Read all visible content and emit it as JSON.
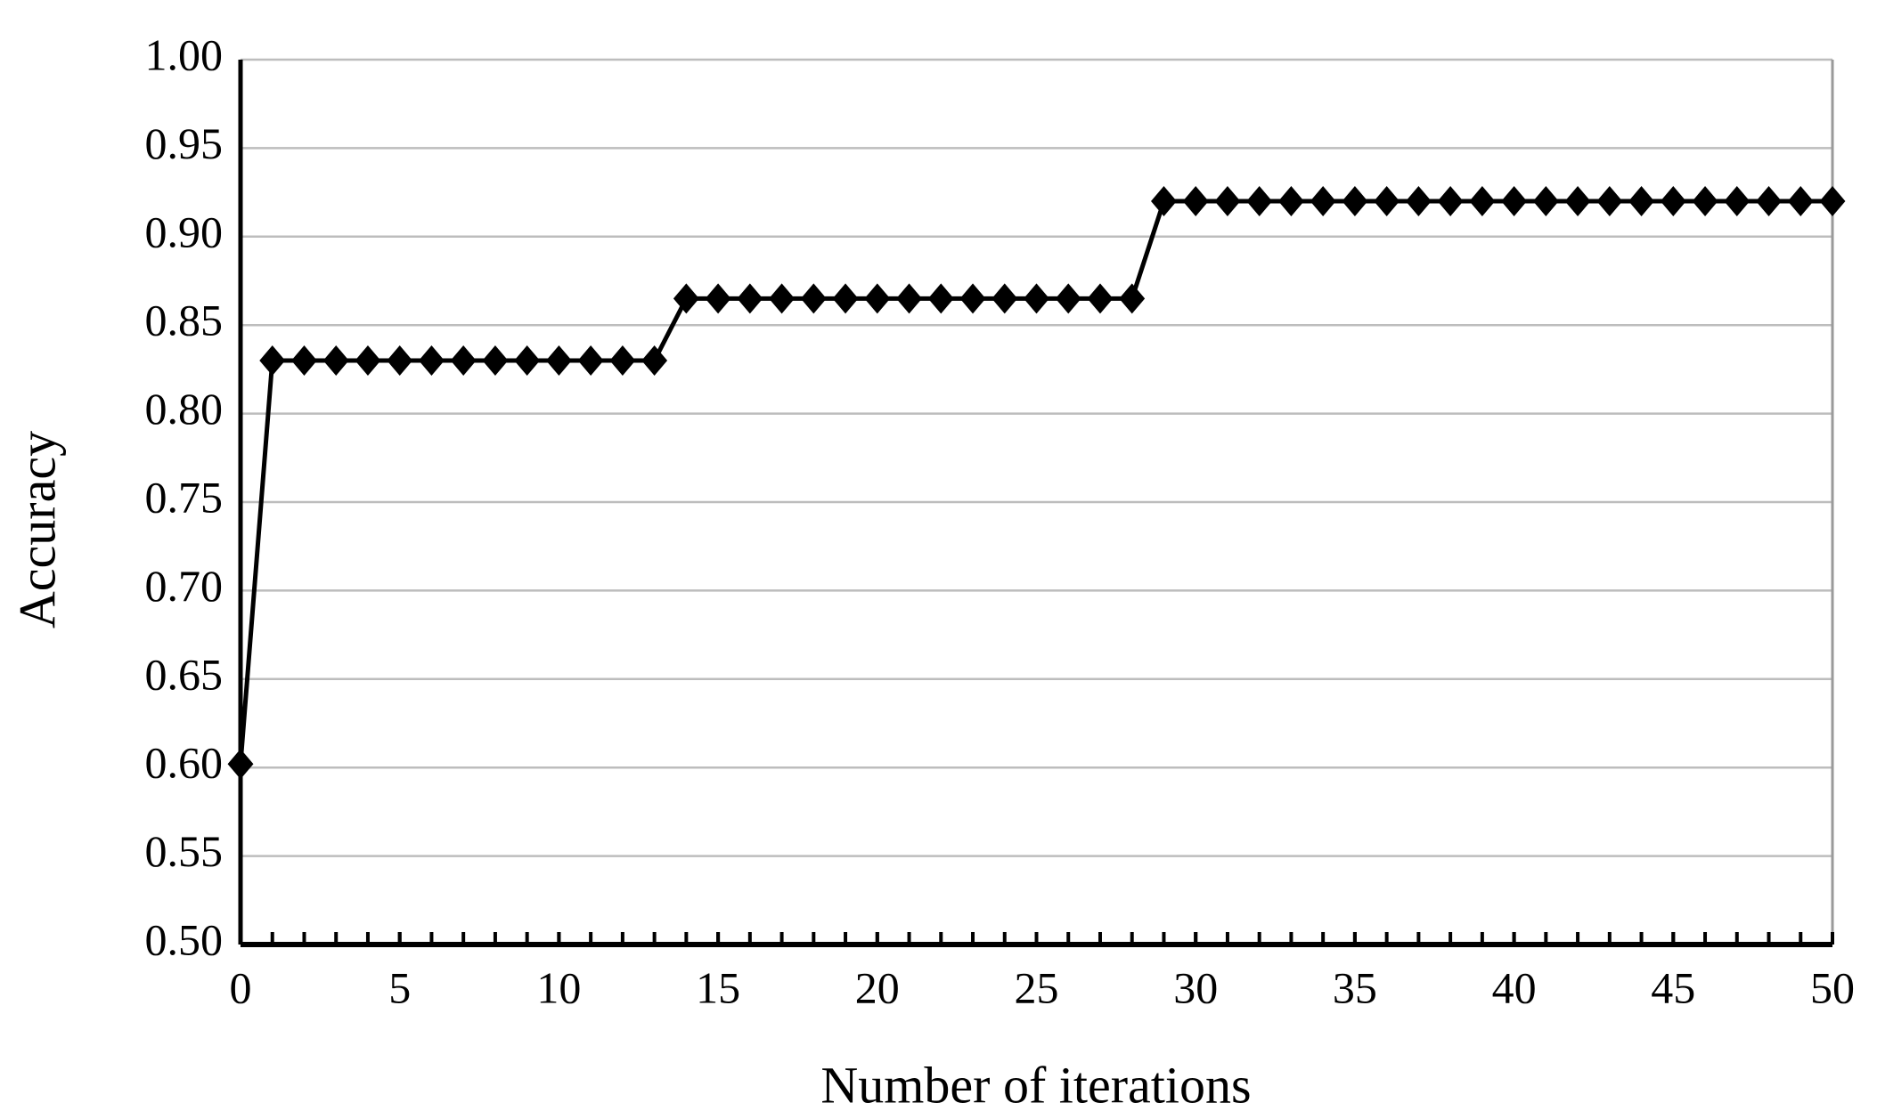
{
  "chart_data": {
    "type": "line",
    "x_label": "Number of iterations",
    "y_label": "Accuracy",
    "x": [
      0,
      1,
      2,
      3,
      4,
      5,
      6,
      7,
      8,
      9,
      10,
      11,
      12,
      13,
      14,
      15,
      16,
      17,
      18,
      19,
      20,
      21,
      22,
      23,
      24,
      25,
      26,
      27,
      28,
      29,
      30,
      31,
      32,
      33,
      34,
      35,
      36,
      37,
      38,
      39,
      40,
      41,
      42,
      43,
      44,
      45,
      46,
      47,
      48,
      49,
      50
    ],
    "series": [
      {
        "color": "#000000",
        "values": [
          0.602,
          0.83,
          0.83,
          0.83,
          0.83,
          0.83,
          0.83,
          0.83,
          0.83,
          0.83,
          0.83,
          0.83,
          0.83,
          0.83,
          0.865,
          0.865,
          0.865,
          0.865,
          0.865,
          0.865,
          0.865,
          0.865,
          0.865,
          0.865,
          0.865,
          0.865,
          0.865,
          0.865,
          0.865,
          0.92,
          0.92,
          0.92,
          0.92,
          0.92,
          0.92,
          0.92,
          0.92,
          0.92,
          0.92,
          0.92,
          0.92,
          0.92,
          0.92,
          0.92,
          0.92,
          0.92,
          0.92,
          0.92,
          0.92,
          0.92,
          0.92
        ]
      }
    ],
    "xlim": [
      0,
      50
    ],
    "xticks": [
      0,
      5,
      10,
      15,
      20,
      25,
      30,
      35,
      40,
      45,
      50
    ],
    "ylim": [
      0.5,
      1.0
    ],
    "yticks": [
      {
        "value": 0.5,
        "label": "0.50"
      },
      {
        "value": 0.55,
        "label": "0.55"
      },
      {
        "value": 0.6,
        "label": "0.60"
      },
      {
        "value": 0.65,
        "label": "0.65"
      },
      {
        "value": 0.7,
        "label": "0.70"
      },
      {
        "value": 0.75,
        "label": "0.75"
      },
      {
        "value": 0.8,
        "label": "0.80"
      },
      {
        "value": 0.85,
        "label": "0.85"
      },
      {
        "value": 0.9,
        "label": "0.90"
      },
      {
        "value": 0.95,
        "label": "0.95"
      },
      {
        "value": 1.0,
        "label": "1.00"
      }
    ],
    "grid": true,
    "marker": "diamond"
  }
}
